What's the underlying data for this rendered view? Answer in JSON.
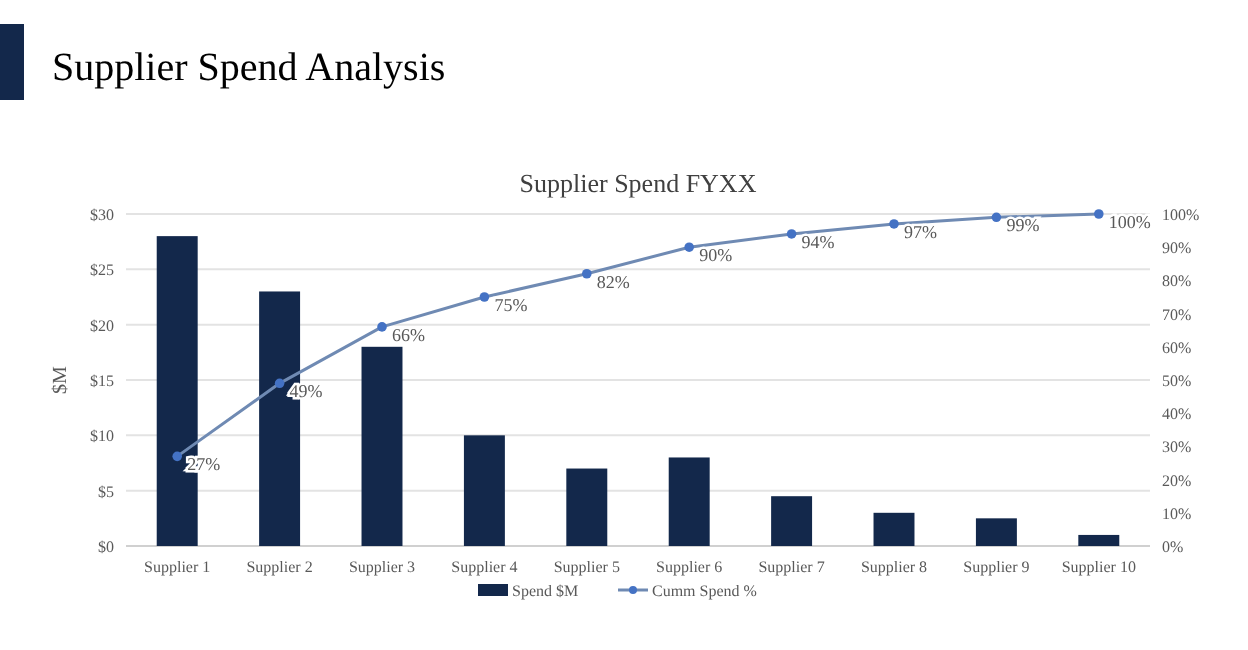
{
  "chart_data": {
    "type": "bar",
    "title": "Supplier Spend FYXX",
    "annotations": [
      "Supplier Spend Analysis"
    ],
    "ylabel": "$M",
    "categories": [
      "Supplier 1",
      "Supplier 2",
      "Supplier 3",
      "Supplier 4",
      "Supplier 5",
      "Supplier 6",
      "Supplier 7",
      "Supplier 8",
      "Supplier 9",
      "Supplier 10"
    ],
    "series": [
      {
        "name": "Spend $M",
        "color": "#13284b",
        "values": [
          28,
          23,
          18,
          10,
          7,
          8,
          4.5,
          3,
          2.5,
          1
        ]
      },
      {
        "name": "Cumm Spend %",
        "type": "line",
        "axis": "y2",
        "color": "#6f8ab3",
        "marker": "circle",
        "values": [
          27,
          49,
          66,
          75,
          82,
          90,
          94,
          97,
          99,
          100
        ],
        "value_labels": [
          "27%",
          "49%",
          "66%",
          "75%",
          "82%",
          "90%",
          "94%",
          "97%",
          "99%",
          "100%"
        ]
      }
    ],
    "ylim": [
      0,
      30
    ],
    "yticks": [
      {
        "value": 0,
        "label": "$0"
      },
      {
        "value": 5,
        "label": "$5"
      },
      {
        "value": 10,
        "label": "$10"
      },
      {
        "value": 15,
        "label": "$15"
      },
      {
        "value": 20,
        "label": "$20"
      },
      {
        "value": 25,
        "label": "$25"
      },
      {
        "value": 30,
        "label": "$30"
      }
    ],
    "y2lim": [
      0,
      100
    ],
    "y2ticks": [
      {
        "value": 0,
        "label": "0%"
      },
      {
        "value": 10,
        "label": "10%"
      },
      {
        "value": 20,
        "label": "20%"
      },
      {
        "value": 30,
        "label": "30%"
      },
      {
        "value": 40,
        "label": "40%"
      },
      {
        "value": 50,
        "label": "50%"
      },
      {
        "value": 60,
        "label": "60%"
      },
      {
        "value": 70,
        "label": "70%"
      },
      {
        "value": 80,
        "label": "80%"
      },
      {
        "value": 90,
        "label": "90%"
      },
      {
        "value": 100,
        "label": "100%"
      }
    ],
    "grid": "y",
    "legend": "bottom"
  }
}
